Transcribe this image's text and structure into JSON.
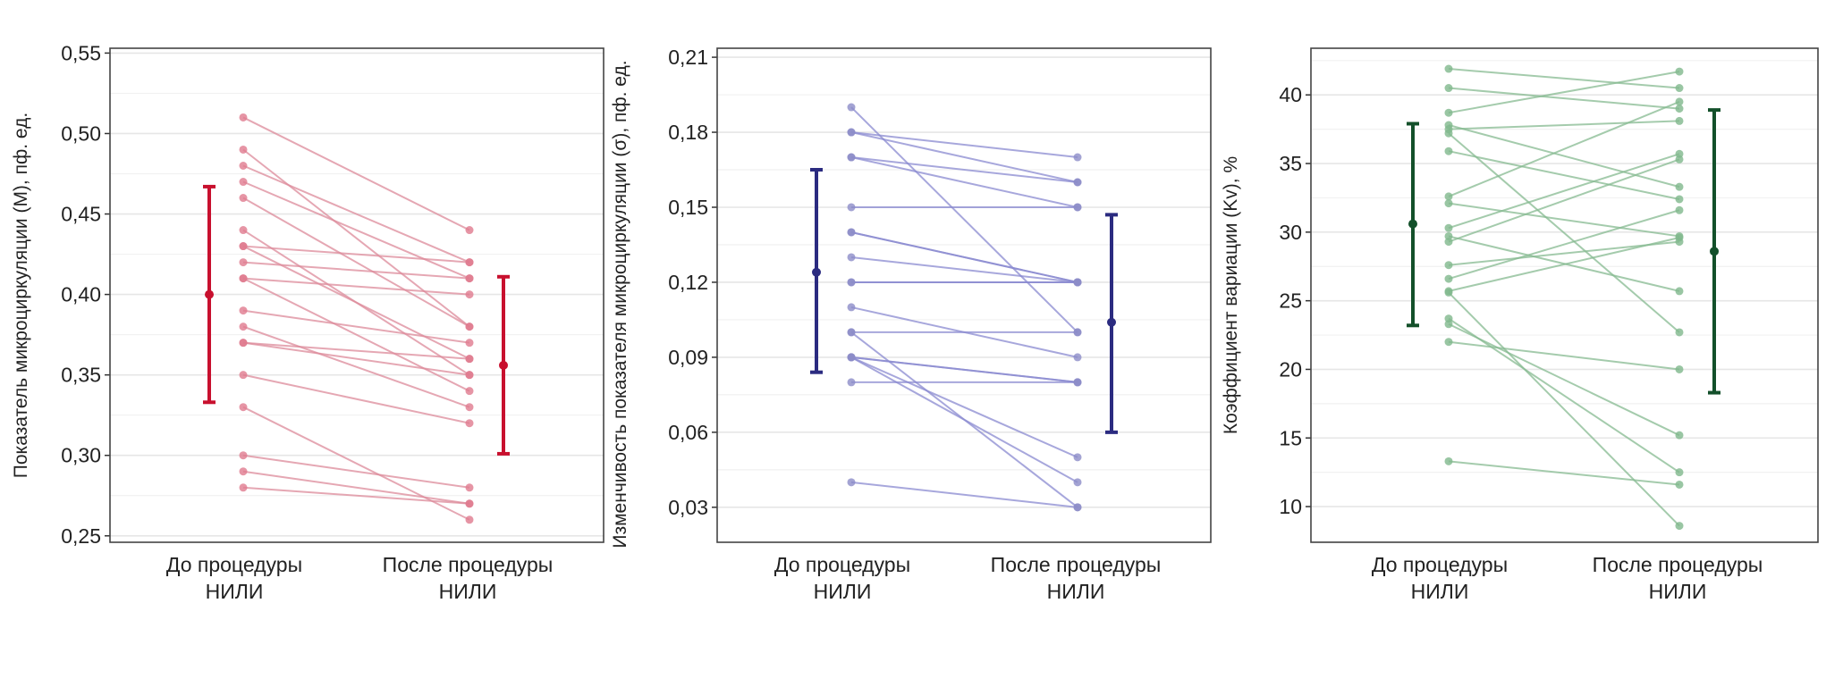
{
  "chart_data": [
    {
      "type": "line",
      "title": "",
      "ylabel": "Показатель микроциркуляции (М), пф. ед.",
      "categories": [
        [
          "До процедуры",
          "НИЛИ"
        ],
        [
          "После процедуры",
          "НИЛИ"
        ]
      ],
      "ylim": [
        0.246,
        0.553
      ],
      "yticks": [
        0.25,
        0.3,
        0.35,
        0.4,
        0.45,
        0.5,
        0.55
      ],
      "ytick_labels": [
        "0,25",
        "0,30",
        "0,35",
        "0,40",
        "0,45",
        "0,50",
        "0,55"
      ],
      "grid": true,
      "colors": {
        "main": "#c8102e",
        "point": "#e07a8e",
        "line": "#dc8a9a"
      },
      "pairs": [
        [
          0.51,
          0.44
        ],
        [
          0.49,
          0.38
        ],
        [
          0.48,
          0.42
        ],
        [
          0.47,
          0.41
        ],
        [
          0.46,
          0.38
        ],
        [
          0.44,
          0.35
        ],
        [
          0.43,
          0.42
        ],
        [
          0.43,
          0.36
        ],
        [
          0.42,
          0.41
        ],
        [
          0.41,
          0.4
        ],
        [
          0.41,
          0.34
        ],
        [
          0.39,
          0.37
        ],
        [
          0.38,
          0.33
        ],
        [
          0.37,
          0.36
        ],
        [
          0.37,
          0.35
        ],
        [
          0.35,
          0.32
        ],
        [
          0.33,
          0.26
        ],
        [
          0.3,
          0.28
        ],
        [
          0.29,
          0.27
        ],
        [
          0.28,
          0.27
        ]
      ],
      "summary": [
        {
          "mean": 0.4,
          "low": 0.333,
          "high": 0.467
        },
        {
          "mean": 0.356,
          "low": 0.301,
          "high": 0.411
        }
      ]
    },
    {
      "type": "line",
      "title": "",
      "ylabel": "Изменчивость показателя микроциркуляции (σ), пф. ед.",
      "categories": [
        [
          "До процедуры",
          "НИЛИ"
        ],
        [
          "После процедуры",
          "НИЛИ"
        ]
      ],
      "ylim": [
        0.016,
        0.2136
      ],
      "yticks": [
        0.03,
        0.06,
        0.09,
        0.12,
        0.15,
        0.18,
        0.21
      ],
      "ytick_labels": [
        "0,03",
        "0,06",
        "0,09",
        "0,12",
        "0,15",
        "0,18",
        "0,21"
      ],
      "grid": true,
      "colors": {
        "main": "#2b2b80",
        "point": "#8c8cc8",
        "line": "#8a8ad0"
      },
      "pairs": [
        [
          0.19,
          0.1
        ],
        [
          0.18,
          0.17
        ],
        [
          0.18,
          0.16
        ],
        [
          0.17,
          0.16
        ],
        [
          0.17,
          0.15
        ],
        [
          0.15,
          0.15
        ],
        [
          0.14,
          0.12
        ],
        [
          0.14,
          0.12
        ],
        [
          0.13,
          0.12
        ],
        [
          0.12,
          0.12
        ],
        [
          0.12,
          0.12
        ],
        [
          0.11,
          0.09
        ],
        [
          0.1,
          0.1
        ],
        [
          0.1,
          0.03
        ],
        [
          0.09,
          0.08
        ],
        [
          0.09,
          0.08
        ],
        [
          0.09,
          0.05
        ],
        [
          0.09,
          0.04
        ],
        [
          0.08,
          0.08
        ],
        [
          0.04,
          0.03
        ]
      ],
      "summary": [
        {
          "mean": 0.124,
          "low": 0.084,
          "high": 0.165
        },
        {
          "mean": 0.104,
          "low": 0.06,
          "high": 0.147
        }
      ]
    },
    {
      "type": "line",
      "title": "",
      "ylabel": "Коэффициент вариации (Kv), %",
      "categories": [
        [
          "До процедуры",
          "НИЛИ"
        ],
        [
          "После процедуры",
          "НИЛИ"
        ]
      ],
      "ylim": [
        7.4,
        43.4
      ],
      "yticks": [
        10,
        15,
        20,
        25,
        30,
        35,
        40
      ],
      "ytick_labels": [
        "10",
        "15",
        "20",
        "25",
        "30",
        "35",
        "40"
      ],
      "grid": true,
      "colors": {
        "main": "#13502a",
        "point": "#7fb88c",
        "line": "#86b990"
      },
      "pairs": [
        [
          41.9,
          40.5
        ],
        [
          40.5,
          39.0
        ],
        [
          38.7,
          41.7
        ],
        [
          37.8,
          33.3
        ],
        [
          37.5,
          38.1
        ],
        [
          37.2,
          22.7
        ],
        [
          35.9,
          32.4
        ],
        [
          32.6,
          39.5
        ],
        [
          32.1,
          29.7
        ],
        [
          30.3,
          35.7
        ],
        [
          29.7,
          25.7
        ],
        [
          29.3,
          35.3
        ],
        [
          27.6,
          29.3
        ],
        [
          26.6,
          31.6
        ],
        [
          25.7,
          29.6
        ],
        [
          25.6,
          8.6
        ],
        [
          23.7,
          12.5
        ],
        [
          23.3,
          15.2
        ],
        [
          22.0,
          20.0
        ],
        [
          13.3,
          11.6
        ]
      ],
      "summary": [
        {
          "mean": 30.6,
          "low": 23.2,
          "high": 37.9
        },
        {
          "mean": 28.6,
          "low": 18.3,
          "high": 38.9
        }
      ]
    }
  ]
}
